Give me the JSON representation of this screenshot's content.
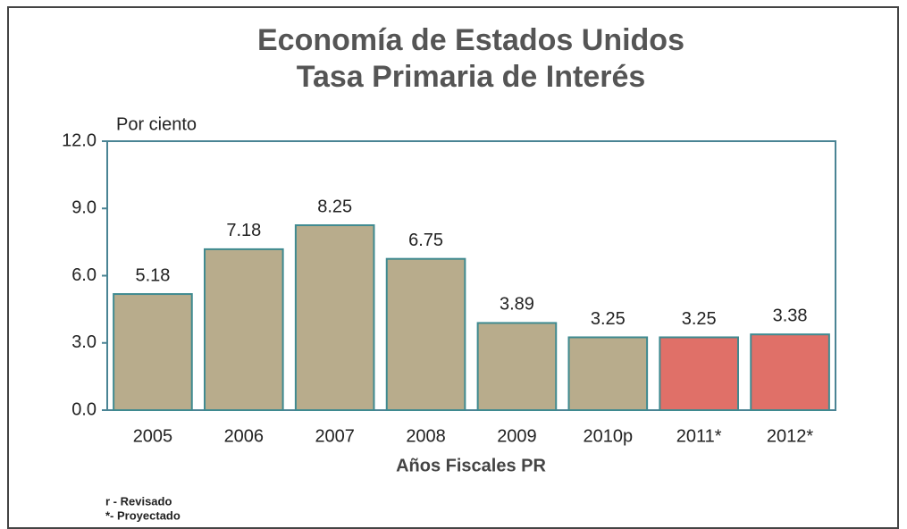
{
  "chart_data": {
    "type": "bar",
    "title": "Economía de Estados Unidos",
    "subtitle": "Tasa Primaria de Interés",
    "y_label": "Por ciento",
    "x_label": "Años Fiscales PR",
    "categories": [
      "2005",
      "2006",
      "2007",
      "2008",
      "2009",
      "2010p",
      "2011*",
      "2012*"
    ],
    "values": [
      5.18,
      7.18,
      8.25,
      6.75,
      3.89,
      3.25,
      3.25,
      3.38
    ],
    "colors": [
      "#b8ac8c",
      "#b8ac8c",
      "#b8ac8c",
      "#b8ac8c",
      "#b8ac8c",
      "#b8ac8c",
      "#e07068",
      "#e07068"
    ],
    "ylim": [
      0,
      12
    ],
    "yticks": [
      {
        "value": 0,
        "label": "0.0"
      },
      {
        "value": 3,
        "label": "3.0"
      },
      {
        "value": 6,
        "label": "6.0"
      },
      {
        "value": 9,
        "label": "9.0"
      },
      {
        "value": 12,
        "label": "12.0"
      }
    ],
    "grid": false,
    "notes": [
      "r - Revisado",
      "*- Proyectado"
    ]
  }
}
